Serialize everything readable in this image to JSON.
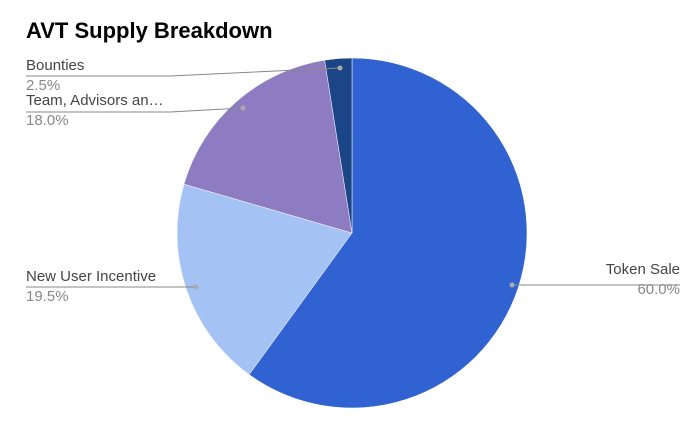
{
  "chart_data": {
    "type": "pie",
    "title": "AVT Supply Breakdown",
    "categories": [
      "Token Sale",
      "New User Incentive",
      "Team, Advisors an…",
      "Bounties"
    ],
    "values": [
      60,
      19.5,
      18,
      2.5
    ],
    "value_labels": [
      "60.0%",
      "19.5%",
      "18.0%",
      "2.5%"
    ],
    "colors": [
      "#3062d1",
      "#a4c2f4",
      "#8e7cc3",
      "#1c4587"
    ]
  }
}
